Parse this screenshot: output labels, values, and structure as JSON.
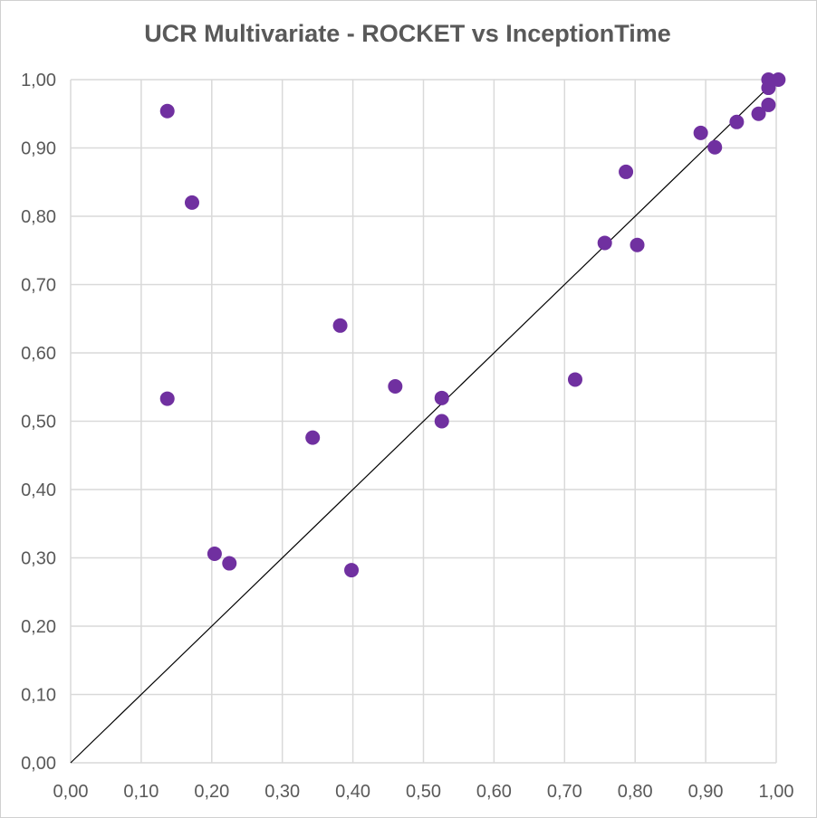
{
  "chart_data": {
    "type": "scatter",
    "title": "UCR Multivariate - ROCKET vs InceptionTime",
    "xlabel": "",
    "ylabel": "",
    "xlim": [
      0,
      1
    ],
    "ylim": [
      0,
      1
    ],
    "grid": true,
    "x_tick_labels": [
      "0,00",
      "0,10",
      "0,20",
      "0,30",
      "0,40",
      "0,50",
      "0,60",
      "0,70",
      "0,80",
      "0,90",
      "1,00"
    ],
    "y_tick_labels": [
      "0,00",
      "0,10",
      "0,20",
      "0,30",
      "0,40",
      "0,50",
      "0,60",
      "0,70",
      "0,80",
      "0,90",
      "1,00"
    ],
    "marker_color": "#7030a0",
    "reference_line": {
      "from": [
        0,
        0
      ],
      "to": [
        1,
        1
      ],
      "color": "#000000"
    },
    "series": [
      {
        "points": [
          {
            "x": 0.137,
            "y": 0.954
          },
          {
            "x": 0.172,
            "y": 0.82
          },
          {
            "x": 0.137,
            "y": 0.533
          },
          {
            "x": 0.204,
            "y": 0.306
          },
          {
            "x": 0.225,
            "y": 0.292
          },
          {
            "x": 0.343,
            "y": 0.476
          },
          {
            "x": 0.382,
            "y": 0.64
          },
          {
            "x": 0.398,
            "y": 0.282
          },
          {
            "x": 0.46,
            "y": 0.551
          },
          {
            "x": 0.526,
            "y": 0.534
          },
          {
            "x": 0.526,
            "y": 0.5
          },
          {
            "x": 0.715,
            "y": 0.561
          },
          {
            "x": 0.757,
            "y": 0.761
          },
          {
            "x": 0.787,
            "y": 0.865
          },
          {
            "x": 0.803,
            "y": 0.758
          },
          {
            "x": 0.893,
            "y": 0.922
          },
          {
            "x": 0.913,
            "y": 0.901
          },
          {
            "x": 0.944,
            "y": 0.938
          },
          {
            "x": 0.975,
            "y": 0.95
          },
          {
            "x": 0.989,
            "y": 1.0
          },
          {
            "x": 0.989,
            "y": 0.988
          },
          {
            "x": 0.989,
            "y": 0.963
          },
          {
            "x": 1.003,
            "y": 1.0
          }
        ]
      }
    ]
  }
}
